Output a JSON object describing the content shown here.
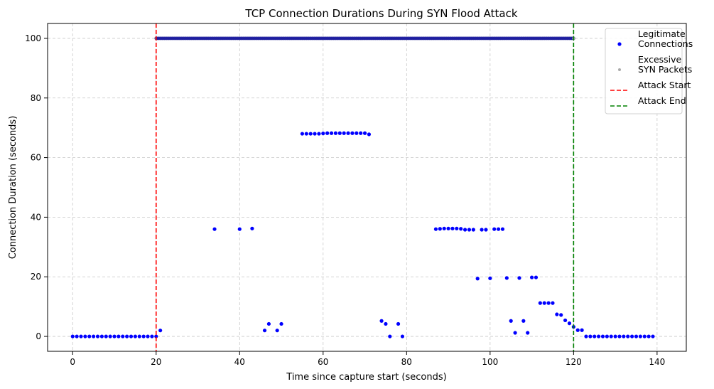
{
  "chart_data": {
    "type": "scatter",
    "title": "TCP Connection Durations During SYN Flood Attack",
    "xlabel": "Time since capture start (seconds)",
    "ylabel": "Connection Duration (seconds)",
    "xlim": [
      -6,
      147
    ],
    "ylim": [
      -5,
      105
    ],
    "xticks": [
      0,
      20,
      40,
      60,
      80,
      100,
      120,
      140
    ],
    "yticks": [
      0,
      20,
      40,
      60,
      80,
      100
    ],
    "grid": true,
    "legend_position": "top-right",
    "series": [
      {
        "name": "Legitimate\nConnections",
        "color": "#0000ff",
        "marker": "circle",
        "points": [
          [
            0,
            0
          ],
          [
            1,
            0
          ],
          [
            2,
            0
          ],
          [
            3,
            0
          ],
          [
            4,
            0
          ],
          [
            5,
            0
          ],
          [
            6,
            0
          ],
          [
            7,
            0
          ],
          [
            8,
            0
          ],
          [
            9,
            0
          ],
          [
            10,
            0
          ],
          [
            11,
            0
          ],
          [
            12,
            0
          ],
          [
            13,
            0
          ],
          [
            14,
            0
          ],
          [
            15,
            0
          ],
          [
            16,
            0
          ],
          [
            17,
            0
          ],
          [
            18,
            0
          ],
          [
            19,
            0
          ],
          [
            20,
            0
          ],
          [
            21,
            2
          ],
          [
            34,
            36
          ],
          [
            40,
            36
          ],
          [
            43,
            36.2
          ],
          [
            46,
            2
          ],
          [
            47,
            4.2
          ],
          [
            49,
            2
          ],
          [
            50,
            4.2
          ],
          [
            55,
            68
          ],
          [
            56,
            68
          ],
          [
            57,
            68
          ],
          [
            58,
            68
          ],
          [
            59,
            68
          ],
          [
            60,
            68.1
          ],
          [
            61,
            68.2
          ],
          [
            62,
            68.2
          ],
          [
            63,
            68.2
          ],
          [
            64,
            68.2
          ],
          [
            65,
            68.2
          ],
          [
            66,
            68.2
          ],
          [
            67,
            68.2
          ],
          [
            68,
            68.2
          ],
          [
            69,
            68.2
          ],
          [
            70,
            68.2
          ],
          [
            71,
            67.8
          ],
          [
            74,
            5.2
          ],
          [
            75,
            4.2
          ],
          [
            76,
            0
          ],
          [
            78,
            4.2
          ],
          [
            79,
            0
          ],
          [
            87,
            36
          ],
          [
            88,
            36.1
          ],
          [
            89,
            36.2
          ],
          [
            90,
            36.2
          ],
          [
            91,
            36.2
          ],
          [
            92,
            36.2
          ],
          [
            93,
            36.1
          ],
          [
            94,
            35.8
          ],
          [
            95,
            35.8
          ],
          [
            96,
            35.8
          ],
          [
            98,
            35.8
          ],
          [
            99,
            35.8
          ],
          [
            101,
            36
          ],
          [
            102,
            36
          ],
          [
            103,
            36
          ],
          [
            97,
            19.4
          ],
          [
            100,
            19.5
          ],
          [
            104,
            19.6
          ],
          [
            107,
            19.6
          ],
          [
            110,
            19.8
          ],
          [
            111,
            19.8
          ],
          [
            105,
            5.2
          ],
          [
            106,
            1.2
          ],
          [
            108,
            5.2
          ],
          [
            109,
            1.2
          ],
          [
            112,
            11.2
          ],
          [
            113,
            11.2
          ],
          [
            114,
            11.2
          ],
          [
            115,
            11.2
          ],
          [
            116,
            7.4
          ],
          [
            117,
            7.2
          ],
          [
            118,
            5.4
          ],
          [
            119,
            4.4
          ],
          [
            120,
            3.2
          ],
          [
            121,
            2.1
          ],
          [
            122,
            2.1
          ],
          [
            123,
            0
          ],
          [
            124,
            0
          ],
          [
            125,
            0
          ],
          [
            126,
            0
          ],
          [
            127,
            0
          ],
          [
            128,
            0
          ],
          [
            129,
            0
          ],
          [
            130,
            0
          ],
          [
            131,
            0
          ],
          [
            132,
            0
          ],
          [
            133,
            0
          ],
          [
            134,
            0
          ],
          [
            135,
            0
          ],
          [
            136,
            0
          ],
          [
            137,
            0
          ],
          [
            138,
            0
          ],
          [
            139,
            0
          ]
        ],
        "flood_band": {
          "x_start": 20,
          "x_end": 120,
          "y": 100
        }
      },
      {
        "name": "Excessive\nSYN Packets",
        "color": "#aaaaaa",
        "marker": "circle",
        "points": [
          [
            120,
            100
          ]
        ],
        "flood_band": {
          "x_start": 20,
          "x_end": 120,
          "y": 100
        }
      }
    ],
    "vlines": [
      {
        "name": "Attack Start",
        "x": 20,
        "color": "#ff0000",
        "style": "dashed"
      },
      {
        "name": "Attack End",
        "x": 120,
        "color": "#008000",
        "style": "dashed"
      }
    ]
  }
}
